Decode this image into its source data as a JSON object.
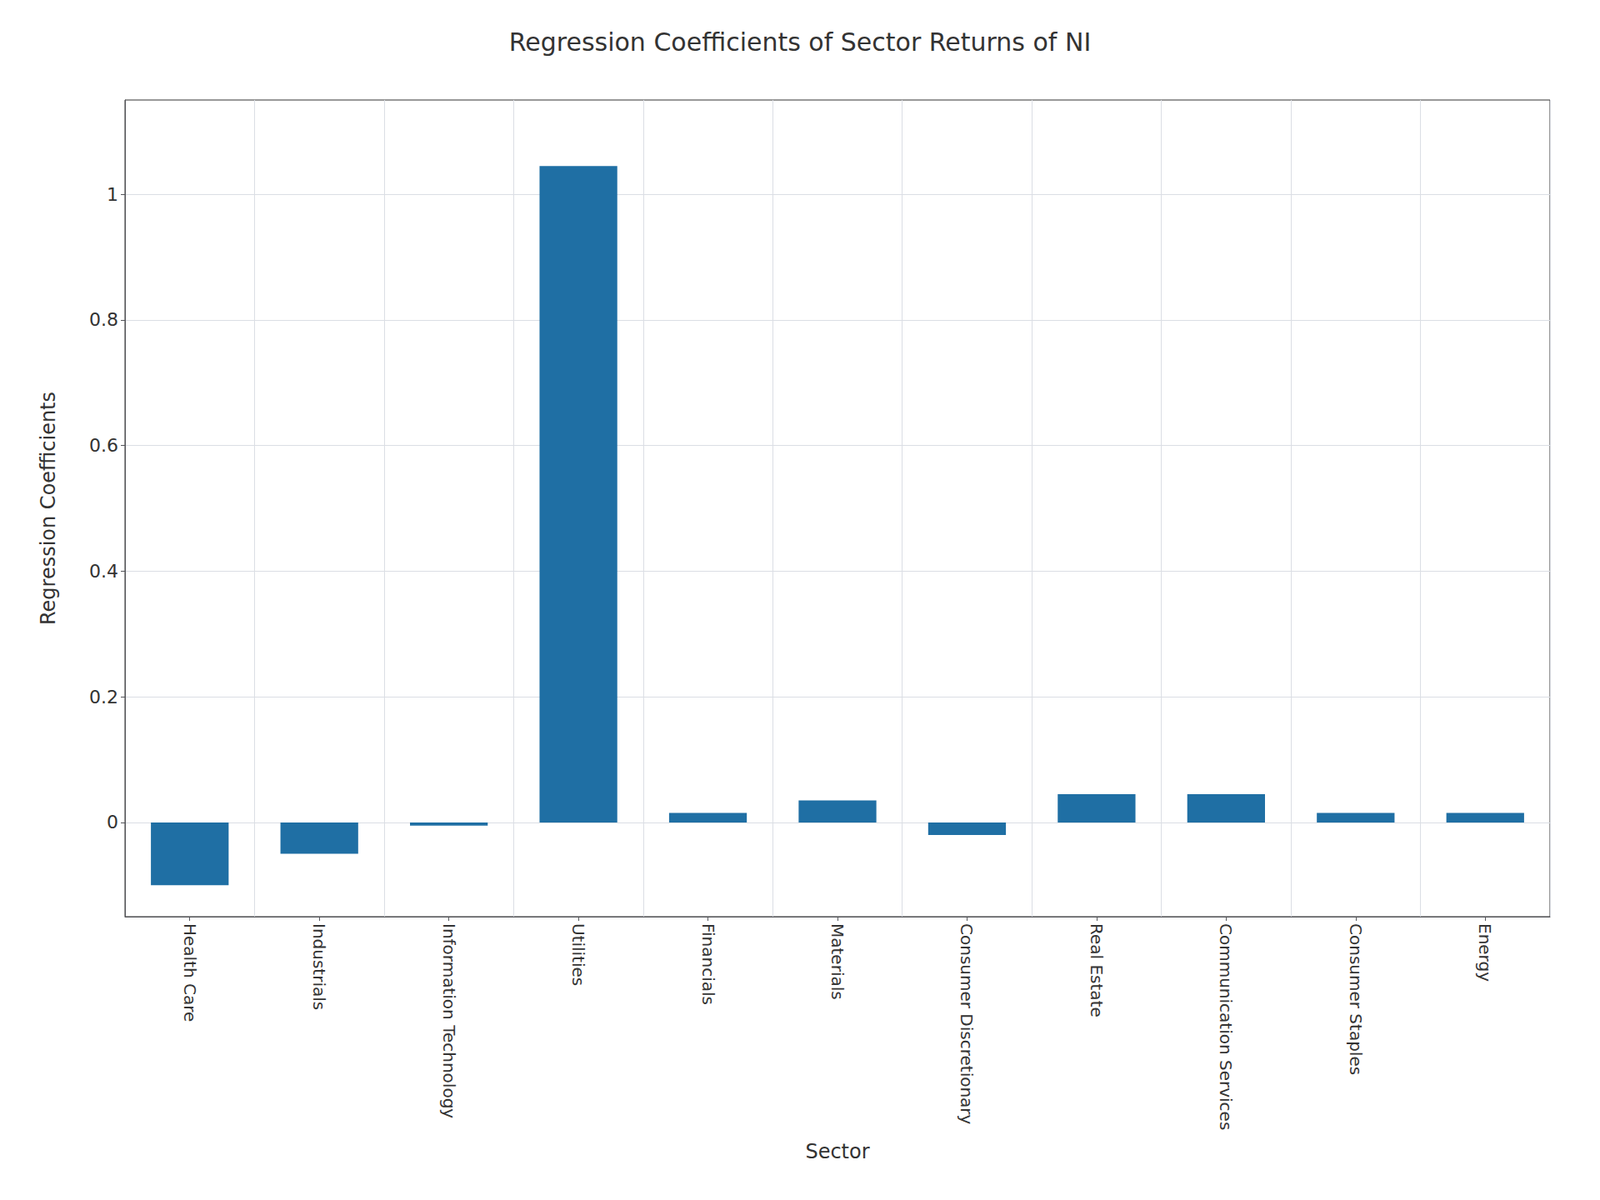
{
  "chart_data": {
    "type": "bar",
    "title": "Regression Coefficients of Sector Returns of NI",
    "xlabel": "Sector",
    "ylabel": "Regression Coefficients",
    "categories": [
      "Health Care",
      "Industrials",
      "Information Technology",
      "Utilities",
      "Financials",
      "Materials",
      "Consumer Discretionary",
      "Real Estate",
      "Communication Services",
      "Consumer Staples",
      "Energy"
    ],
    "values": [
      -0.1,
      -0.05,
      -0.005,
      1.045,
      0.015,
      0.035,
      -0.02,
      0.045,
      0.045,
      0.015,
      0.015
    ],
    "color": "#1f6fa4",
    "ylim": [
      -0.15,
      1.15
    ],
    "yticks": [
      0,
      0.2,
      0.4,
      0.6,
      0.8,
      1
    ],
    "grid": true
  }
}
